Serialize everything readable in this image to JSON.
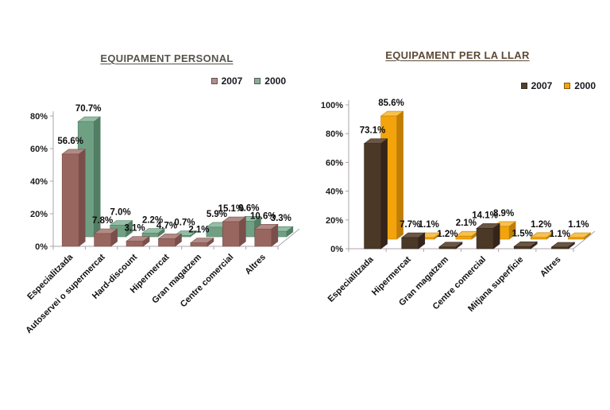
{
  "page": {
    "background": "#ffffff"
  },
  "chart_data": [
    {
      "type": "bar",
      "variant": "3d-clustered-column",
      "title": "EQUIPAMENT PERSONAL",
      "title_color": "#57544b",
      "categories": [
        "Especialitzada",
        "Autoservei o supermercat",
        "Hard-discount",
        "Hipermercat",
        "Gran magatzem",
        "Centre comercial",
        "Altres"
      ],
      "series": [
        {
          "name": "2007",
          "values": [
            56.6,
            7.8,
            3.1,
            4.7,
            2.1,
            15.1,
            10.6
          ],
          "color": "#99665f",
          "color_side": "#7a4f4b",
          "color_top": "#b18a84",
          "legend_swatch": "#b18d8d"
        },
        {
          "name": "2000",
          "values": [
            70.7,
            7.0,
            2.2,
            0.7,
            5.9,
            9.6,
            3.3
          ],
          "color": "#6fa084",
          "color_side": "#527e64",
          "color_top": "#94bda5",
          "legend_swatch": "#88ad97"
        }
      ],
      "ylim": [
        0,
        80
      ],
      "yticks": [
        "0%",
        "20%",
        "40%",
        "60%",
        "80%"
      ],
      "ylabel": "",
      "xlabel": "",
      "value_suffix": "%",
      "value_decimals": 1,
      "legend_position": "top-right",
      "grid": false
    },
    {
      "type": "bar",
      "variant": "3d-clustered-column",
      "title": "EQUIPAMENT PER LA LLAR",
      "title_color": "#5d4a35",
      "categories": [
        "Especialitzada",
        "Hipermercat",
        "Gran magatzem",
        "Centre comercial",
        "Mitjana superficie",
        "Altres"
      ],
      "series": [
        {
          "name": "2007",
          "values": [
            73.1,
            7.7,
            1.2,
            14.1,
            1.5,
            1.1
          ],
          "color": "#4c3827",
          "color_side": "#342419",
          "color_top": "#6b5643",
          "legend_swatch": "#53402e"
        },
        {
          "name": "2000",
          "values": [
            85.6,
            1.1,
            2.1,
            8.9,
            1.2,
            1.1
          ],
          "color": "#f3a40c",
          "color_side": "#c07e05",
          "color_top": "#f7c14e",
          "legend_swatch": "#f2a60e"
        }
      ],
      "ylim": [
        0,
        100
      ],
      "yticks": [
        "0%",
        "20%",
        "40%",
        "60%",
        "80%",
        "100%"
      ],
      "ylabel": "",
      "xlabel": "",
      "value_suffix": "%",
      "value_decimals": 1,
      "legend_position": "top-right",
      "grid": false
    }
  ]
}
